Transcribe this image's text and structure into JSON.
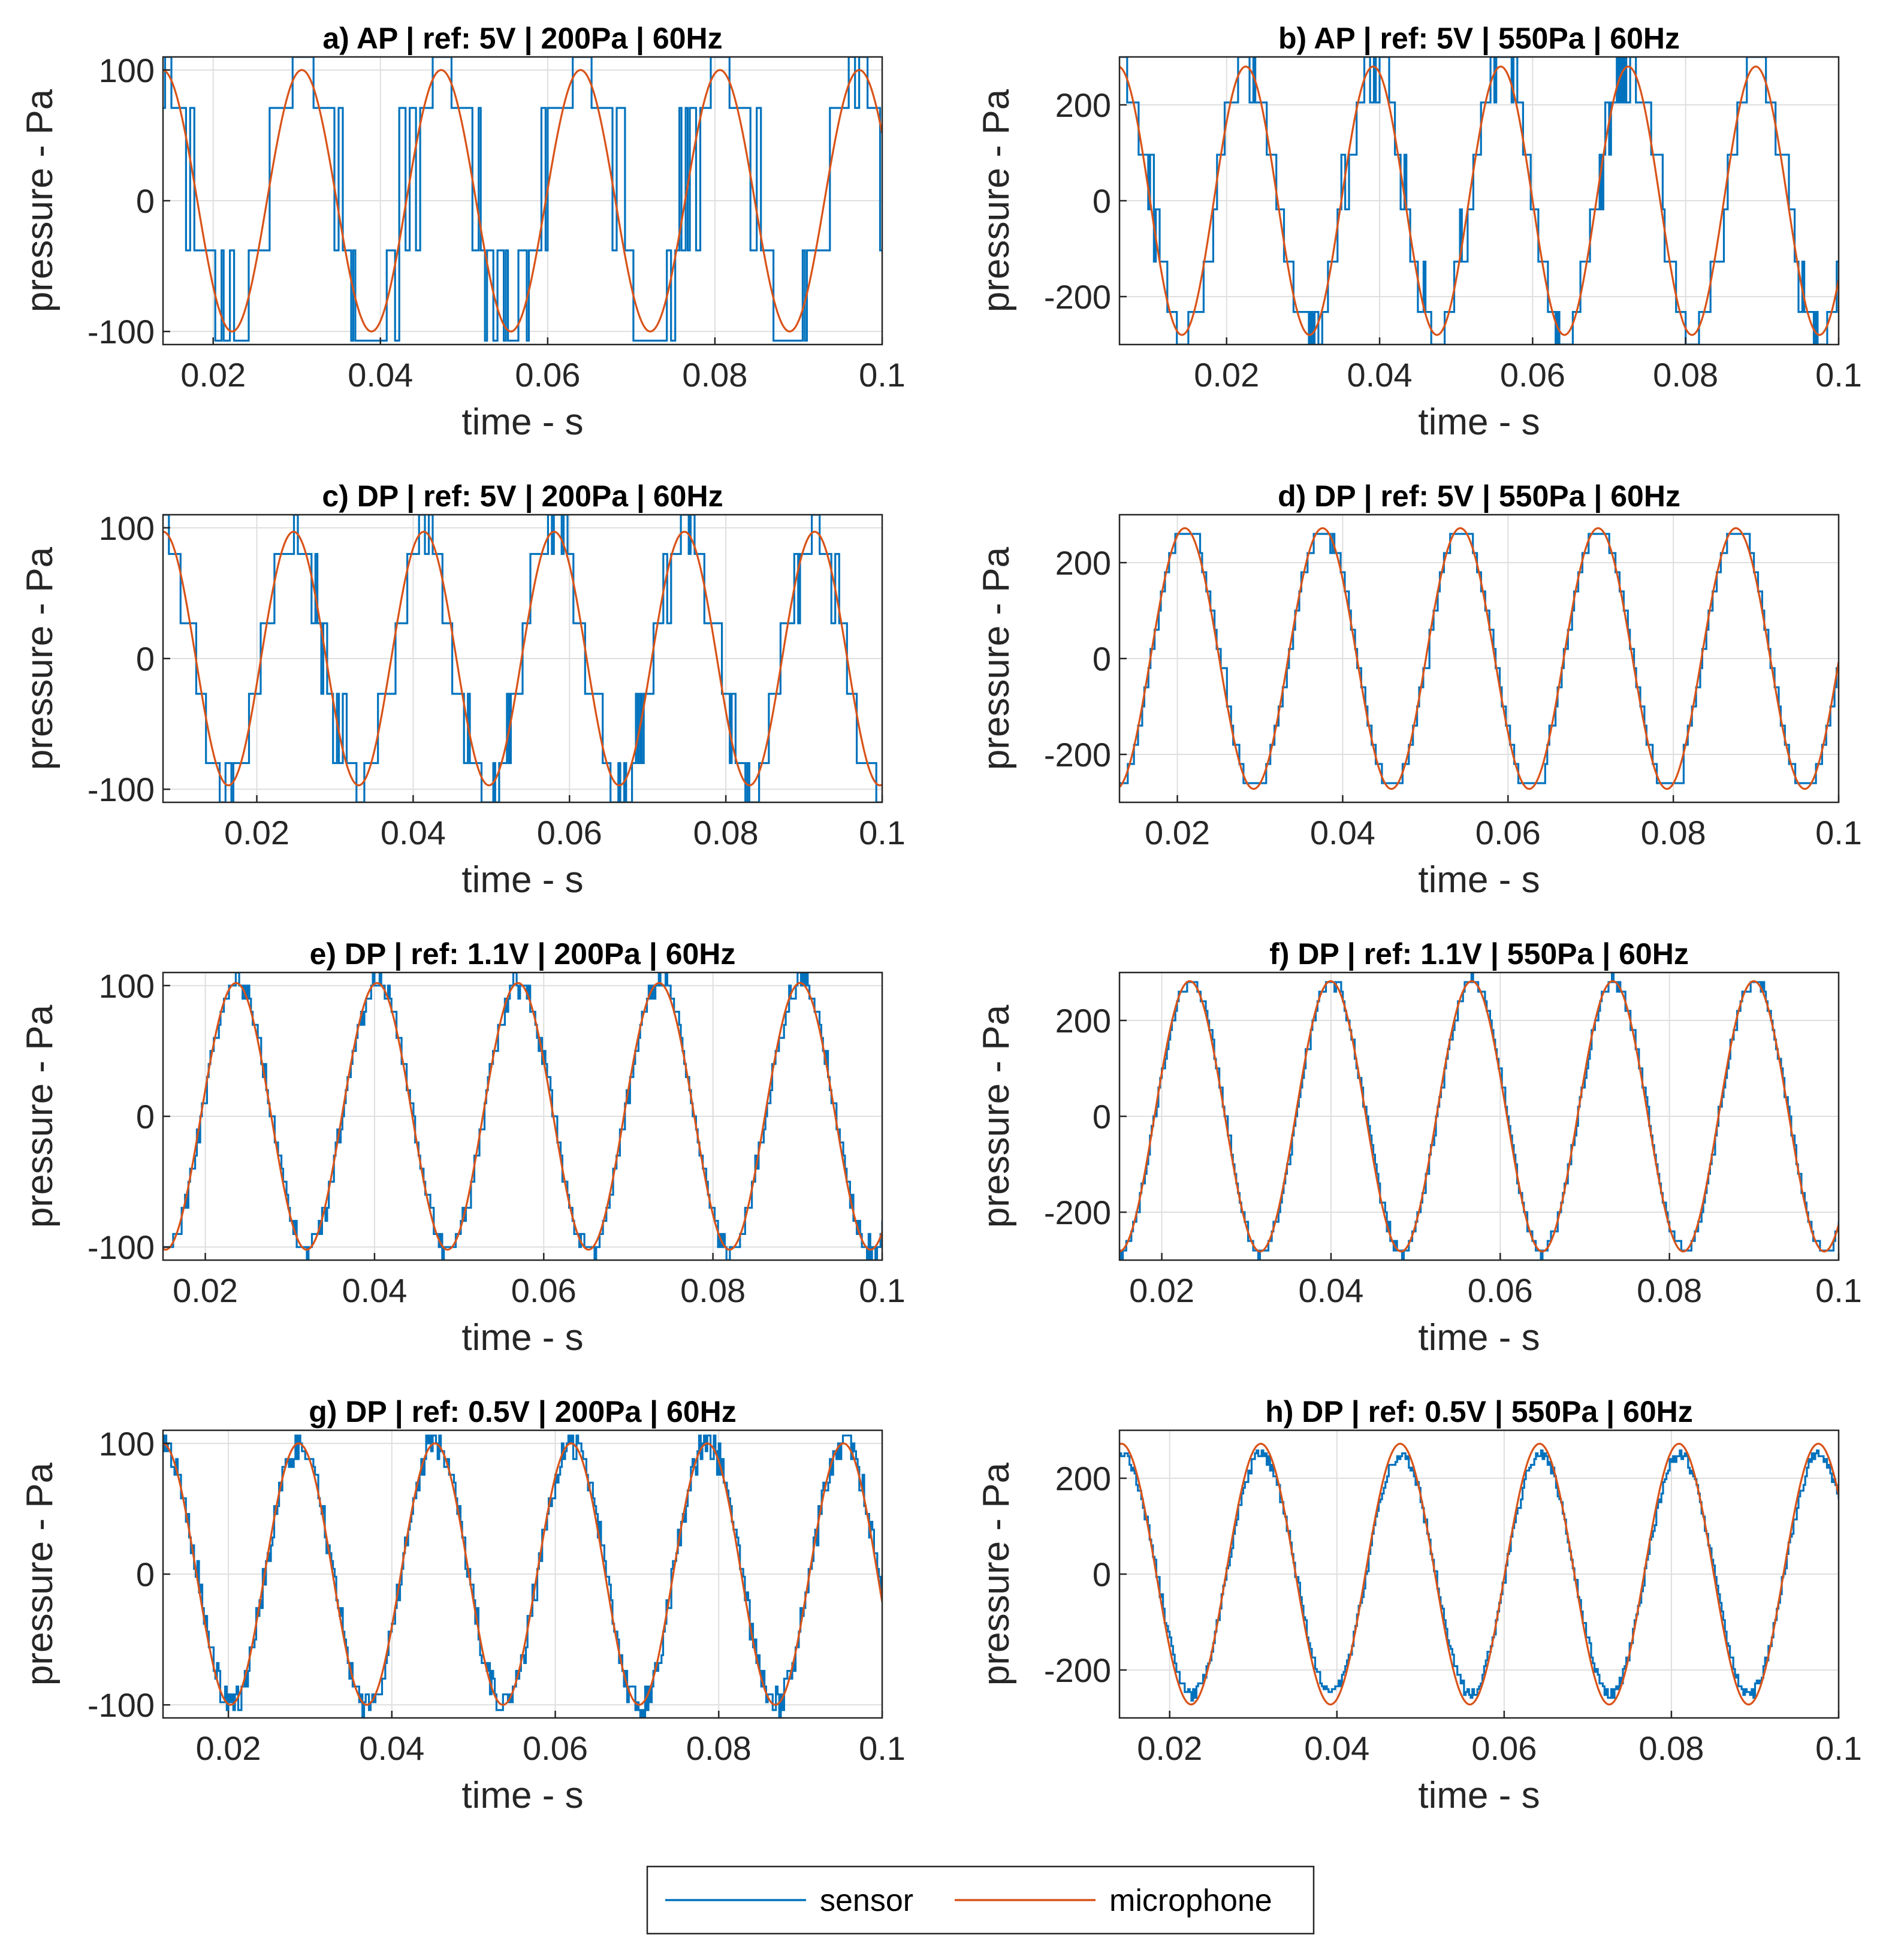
{
  "figure": {
    "colors": {
      "sensor": "#0072BD",
      "microphone": "#D95319",
      "grid": "#dfdfdf",
      "axis": "#262626"
    }
  },
  "legend": {
    "entries": [
      {
        "label": "sensor",
        "color": "#0072BD"
      },
      {
        "label": "microphone",
        "color": "#D95319"
      }
    ]
  },
  "chart_data": [
    {
      "id": "a",
      "type": "line",
      "title": "a) AP | ref: 5V | 200Pa | 60Hz",
      "xlabel": "time - s",
      "ylabel": "pressure - Pa",
      "xlim": [
        0.014,
        0.1
      ],
      "ylim": [
        -110,
        110
      ],
      "xticks": [
        0.02,
        0.04,
        0.06,
        0.08,
        0.1
      ],
      "xticklabels": [
        "0.02",
        "0.04",
        "0.06",
        "0.08",
        "0.1"
      ],
      "yticks": [
        -100,
        0,
        100
      ],
      "yticklabels": [
        "-100",
        "0",
        "100"
      ],
      "grid": true,
      "legend_position": "bottom-center",
      "series": [
        {
          "name": "microphone",
          "kind": "sine",
          "amplitude": 100,
          "frequency_hz": 60,
          "peak_time_s": 0.0306,
          "offset": 0
        },
        {
          "name": "sensor",
          "kind": "quantized",
          "levels": [
            -107,
            -38,
            71,
            110
          ],
          "glitch_density": 0.35,
          "step_ms": 0.25,
          "noise_pa": 0
        }
      ]
    },
    {
      "id": "b",
      "type": "line",
      "title": "b) AP | ref: 5V | 550Pa | 60Hz",
      "xlabel": "time - s",
      "ylabel": "pressure - Pa",
      "xlim": [
        0.006,
        0.1
      ],
      "ylim": [
        -300,
        300
      ],
      "xticks": [
        0.02,
        0.04,
        0.06,
        0.08,
        0.1
      ],
      "xticklabels": [
        "0.02",
        "0.04",
        "0.06",
        "0.08",
        "0.1"
      ],
      "yticks": [
        -200,
        0,
        200
      ],
      "yticklabels": [
        "-200",
        "0",
        "200"
      ],
      "grid": true,
      "legend_position": "bottom-center",
      "series": [
        {
          "name": "microphone",
          "kind": "sine",
          "amplitude": 280,
          "frequency_hz": 60,
          "peak_time_s": 0.0225,
          "offset": 0
        },
        {
          "name": "sensor",
          "kind": "quantized",
          "levels": [
            -300,
            -232,
            -127,
            -18,
            96,
            205,
            300
          ],
          "glitch_density": 0.3,
          "step_ms": 0.25,
          "noise_pa": 0
        }
      ]
    },
    {
      "id": "c",
      "type": "line",
      "title": "c) DP | ref: 5V | 200Pa | 60Hz",
      "xlabel": "time - s",
      "ylabel": "pressure - Pa",
      "xlim": [
        0.008,
        0.1
      ],
      "ylim": [
        -110,
        110
      ],
      "xticks": [
        0.02,
        0.04,
        0.06,
        0.08,
        0.1
      ],
      "xticklabels": [
        "0.02",
        "0.04",
        "0.06",
        "0.08",
        "0.1"
      ],
      "yticks": [
        -100,
        0,
        100
      ],
      "yticklabels": [
        "-100",
        "0",
        "100"
      ],
      "grid": true,
      "legend_position": "bottom-center",
      "series": [
        {
          "name": "microphone",
          "kind": "sine",
          "amplitude": 97,
          "frequency_hz": 60,
          "peak_time_s": 0.0247,
          "offset": 0
        },
        {
          "name": "sensor",
          "kind": "quantized",
          "levels": [
            -110,
            -80,
            -27,
            27,
            80,
            110
          ],
          "glitch_density": 0.3,
          "step_ms": 0.25,
          "noise_pa": 0
        }
      ]
    },
    {
      "id": "d",
      "type": "line",
      "title": "d) DP | ref: 5V | 550Pa | 60Hz",
      "xlabel": "time - s",
      "ylabel": "pressure - Pa",
      "xlim": [
        0.013,
        0.1
      ],
      "ylim": [
        -300,
        300
      ],
      "xticks": [
        0.02,
        0.04,
        0.06,
        0.08,
        0.1
      ],
      "xticklabels": [
        "0.02",
        "0.04",
        "0.06",
        "0.08",
        "0.1"
      ],
      "yticks": [
        -200,
        0,
        200
      ],
      "yticklabels": [
        "-200",
        "0",
        "200"
      ],
      "grid": true,
      "legend_position": "bottom-center",
      "series": [
        {
          "name": "microphone",
          "kind": "sine",
          "amplitude": 272,
          "frequency_hz": 60,
          "peak_time_s": 0.0209,
          "offset": 0
        },
        {
          "name": "sensor",
          "kind": "quantized",
          "levels": [
            -300,
            -260,
            -220,
            -180,
            -140,
            -100,
            -60,
            -20,
            20,
            60,
            100,
            140,
            180,
            220,
            260,
            290
          ],
          "glitch_density": 0.12,
          "step_ms": 0.25,
          "noise_pa": 0
        }
      ]
    },
    {
      "id": "e",
      "type": "line",
      "title": "e) DP | ref: 1.1V | 200Pa | 60Hz",
      "xlabel": "time - s",
      "ylabel": "pressure - Pa",
      "xlim": [
        0.015,
        0.1
      ],
      "ylim": [
        -110,
        110
      ],
      "xticks": [
        0.02,
        0.04,
        0.06,
        0.08,
        0.1
      ],
      "xticklabels": [
        "0.02",
        "0.04",
        "0.06",
        "0.08",
        "0.1"
      ],
      "yticks": [
        -100,
        0,
        100
      ],
      "yticklabels": [
        "-100",
        "0",
        "100"
      ],
      "grid": true,
      "legend_position": "bottom-center",
      "series": [
        {
          "name": "microphone",
          "kind": "sine",
          "amplitude": 102,
          "frequency_hz": 60,
          "peak_time_s": 0.0403,
          "offset": 0
        },
        {
          "name": "sensor",
          "kind": "quantized",
          "levels": [
            -110,
            -100,
            -90,
            -80,
            -70,
            -60,
            -50,
            -40,
            -30,
            -20,
            -10,
            0,
            10,
            20,
            30,
            40,
            50,
            60,
            70,
            80,
            90,
            100,
            110
          ],
          "glitch_density": 0,
          "step_ms": 0.2,
          "noise_pa": 8
        }
      ]
    },
    {
      "id": "f",
      "type": "line",
      "title": "f) DP | ref: 1.1V | 550Pa | 60Hz",
      "xlabel": "time - s",
      "ylabel": "pressure - Pa",
      "xlim": [
        0.015,
        0.1
      ],
      "ylim": [
        -300,
        300
      ],
      "xticks": [
        0.02,
        0.04,
        0.06,
        0.08,
        0.1
      ],
      "xticklabels": [
        "0.02",
        "0.04",
        "0.06",
        "0.08",
        "0.1"
      ],
      "yticks": [
        -200,
        0,
        200
      ],
      "yticklabels": [
        "-200",
        "0",
        "200"
      ],
      "grid": true,
      "legend_position": "bottom-center",
      "series": [
        {
          "name": "microphone",
          "kind": "sine",
          "amplitude": 282,
          "frequency_hz": 60,
          "peak_time_s": 0.0233,
          "offset": 0
        },
        {
          "name": "sensor",
          "kind": "quantized",
          "levels": [
            -300,
            -280,
            -260,
            -240,
            -220,
            -200,
            -180,
            -160,
            -140,
            -120,
            -100,
            -80,
            -60,
            -40,
            -20,
            0,
            20,
            40,
            60,
            80,
            100,
            120,
            140,
            160,
            180,
            200,
            220,
            240,
            260,
            280,
            300
          ],
          "glitch_density": 0,
          "step_ms": 0.2,
          "noise_pa": 12
        }
      ]
    },
    {
      "id": "g",
      "type": "line",
      "title": "g) DP | ref: 0.5V | 200Pa | 60Hz",
      "xlabel": "time - s",
      "ylabel": "pressure - Pa",
      "xlim": [
        0.012,
        0.1
      ],
      "ylim": [
        -110,
        110
      ],
      "xticks": [
        0.02,
        0.04,
        0.06,
        0.08,
        0.1
      ],
      "xticklabels": [
        "0.02",
        "0.04",
        "0.06",
        "0.08",
        "0.1"
      ],
      "yticks": [
        -100,
        0,
        100
      ],
      "yticklabels": [
        "-100",
        "0",
        "100"
      ],
      "grid": true,
      "legend_position": "bottom-center",
      "series": [
        {
          "name": "microphone",
          "kind": "sine",
          "amplitude": 100,
          "frequency_hz": 60,
          "peak_time_s": 0.0286,
          "offset": 0
        },
        {
          "name": "sensor",
          "kind": "quantized",
          "levels": [
            -110,
            -104,
            -98,
            -92,
            -86,
            -80,
            -74,
            -68,
            -62,
            -56,
            -50,
            -44,
            -38,
            -32,
            -26,
            -20,
            -14,
            -8,
            -2,
            4,
            10,
            16,
            22,
            28,
            34,
            40,
            46,
            52,
            58,
            64,
            70,
            76,
            82,
            88,
            94,
            100,
            106
          ],
          "glitch_density": 0,
          "step_ms": 0.2,
          "noise_pa": 12
        }
      ]
    },
    {
      "id": "h",
      "type": "line",
      "title": "h) DP | ref: 0.5V | 550Pa | 60Hz",
      "xlabel": "time - s",
      "ylabel": "pressure - Pa",
      "xlim": [
        0.014,
        0.1
      ],
      "ylim": [
        -300,
        300
      ],
      "xticks": [
        0.02,
        0.04,
        0.06,
        0.08,
        0.1
      ],
      "xticklabels": [
        "0.02",
        "0.04",
        "0.06",
        "0.08",
        "0.1"
      ],
      "yticks": [
        -200,
        0,
        200
      ],
      "yticklabels": [
        "-200",
        "0",
        "200"
      ],
      "grid": true,
      "legend_position": "bottom-center",
      "series": [
        {
          "name": "microphone",
          "kind": "sine",
          "amplitude": 272,
          "frequency_hz": 60,
          "peak_time_s": 0.0309,
          "offset": 0
        },
        {
          "name": "sensor",
          "kind": "sine_scaled_noisy",
          "scale": 0.92,
          "step_ms": 0.2,
          "noise_pa": 12
        }
      ]
    }
  ]
}
